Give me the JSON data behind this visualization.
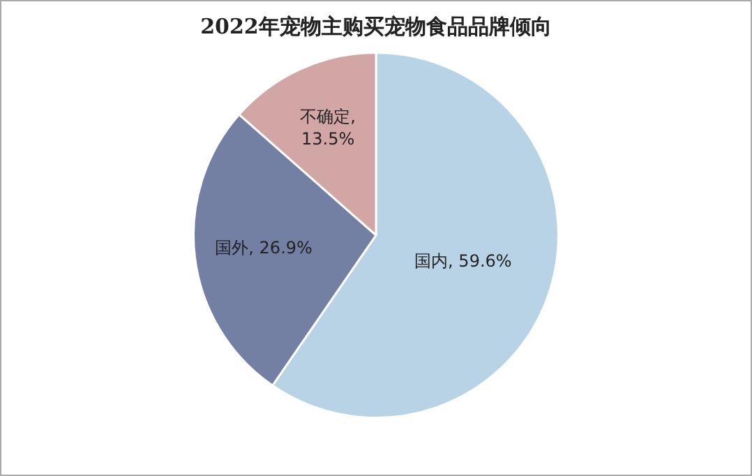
{
  "chart_data": {
    "type": "pie",
    "title": "2022年宠物主购买宠物食品品牌倾向",
    "categories": [
      "国内",
      "国外",
      "不确定"
    ],
    "values": [
      59.6,
      26.9,
      13.5
    ],
    "colors": [
      "#b8d3e6",
      "#737fa3",
      "#d3a6a6"
    ],
    "value_labels": [
      ", 59.6%",
      ", 26.9%",
      ", 13.5%"
    ],
    "legend": false
  }
}
